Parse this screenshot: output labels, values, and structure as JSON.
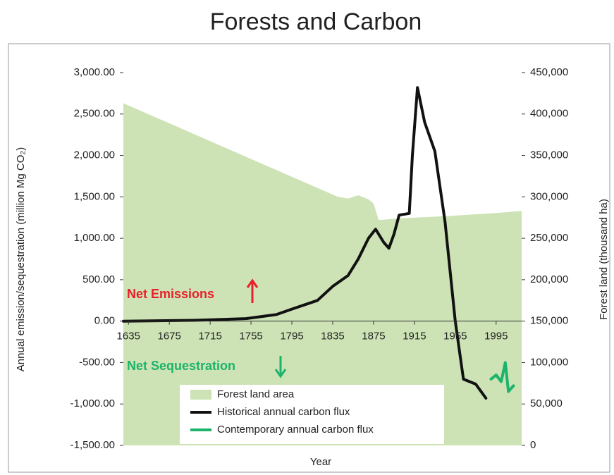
{
  "chart_data": {
    "type": "line",
    "title": "Forests and Carbon",
    "x_label": "Year",
    "y_label": "Annual emission/sequestration (million Mg CO₂)",
    "y2_label": "Forest land (thousand ha)",
    "xlim": [
      1630,
      2020
    ],
    "xticks": [
      1635,
      1675,
      1715,
      1755,
      1795,
      1835,
      1875,
      1915,
      1955,
      1995
    ],
    "ylim": [
      -1500,
      3000
    ],
    "yticks": [
      {
        "value": -1500,
        "label": "-1,500.00"
      },
      {
        "value": -1000,
        "label": "-1,000.00"
      },
      {
        "value": -500,
        "label": "-500.00"
      },
      {
        "value": 0,
        "label": "0.00"
      },
      {
        "value": 500,
        "label": "500.00"
      },
      {
        "value": 1000,
        "label": "1,000.00"
      },
      {
        "value": 1500,
        "label": "1,500.00"
      },
      {
        "value": 2000,
        "label": "2,000.00"
      },
      {
        "value": 2500,
        "label": "2,500.00"
      },
      {
        "value": 3000,
        "label": "3,000.00"
      }
    ],
    "y2lim": [
      0,
      450000
    ],
    "y2ticks": [
      0,
      {
        "value": 50000,
        "label": "50,000"
      },
      {
        "value": 100000,
        "label": "100,000"
      },
      {
        "value": 150000,
        "label": "150,000"
      },
      {
        "value": 200000,
        "label": "200,000"
      },
      {
        "value": 250000,
        "label": "250,000"
      },
      {
        "value": 300000,
        "label": "300,000"
      },
      {
        "value": 350000,
        "label": "350,000"
      },
      {
        "value": 400000,
        "label": "400,000"
      },
      {
        "value": 450000,
        "label": "450,000"
      }
    ],
    "annotations": [
      {
        "text": "Net Emissions",
        "color": "#e8202a"
      },
      {
        "text": "Net Sequestration",
        "color": "#1db36b"
      }
    ],
    "series": [
      {
        "name": "Forest land area",
        "kind": "area",
        "axis": "y2",
        "color": "#cde3b5",
        "x": [
          1630,
          1840,
          1850,
          1860,
          1870,
          1875,
          1880,
          1900,
          1950,
          2000,
          2020
        ],
        "values": [
          413000,
          300000,
          298000,
          302000,
          297000,
          292000,
          272000,
          274000,
          277000,
          281000,
          283000
        ]
      },
      {
        "name": "Historical annual carbon flux",
        "kind": "line",
        "color": "#111111",
        "x": [
          1630,
          1700,
          1750,
          1780,
          1795,
          1820,
          1835,
          1850,
          1860,
          1870,
          1877,
          1885,
          1890,
          1895,
          1900,
          1910,
          1913,
          1918,
          1925,
          1935,
          1945,
          1955,
          1963,
          1975,
          1985
        ],
        "values": [
          0,
          10,
          30,
          80,
          145,
          250,
          420,
          550,
          750,
          1000,
          1110,
          950,
          880,
          1050,
          1280,
          1300,
          2000,
          2820,
          2400,
          2050,
          1200,
          0,
          -700,
          -760,
          -930
        ]
      },
      {
        "name": "Contemporary annual carbon flux",
        "kind": "line",
        "color": "#1db36b",
        "x": [
          1990,
          1995,
          2000,
          2004,
          2007,
          2012
        ],
        "values": [
          -700,
          -650,
          -730,
          -500,
          -850,
          -780
        ]
      }
    ]
  }
}
